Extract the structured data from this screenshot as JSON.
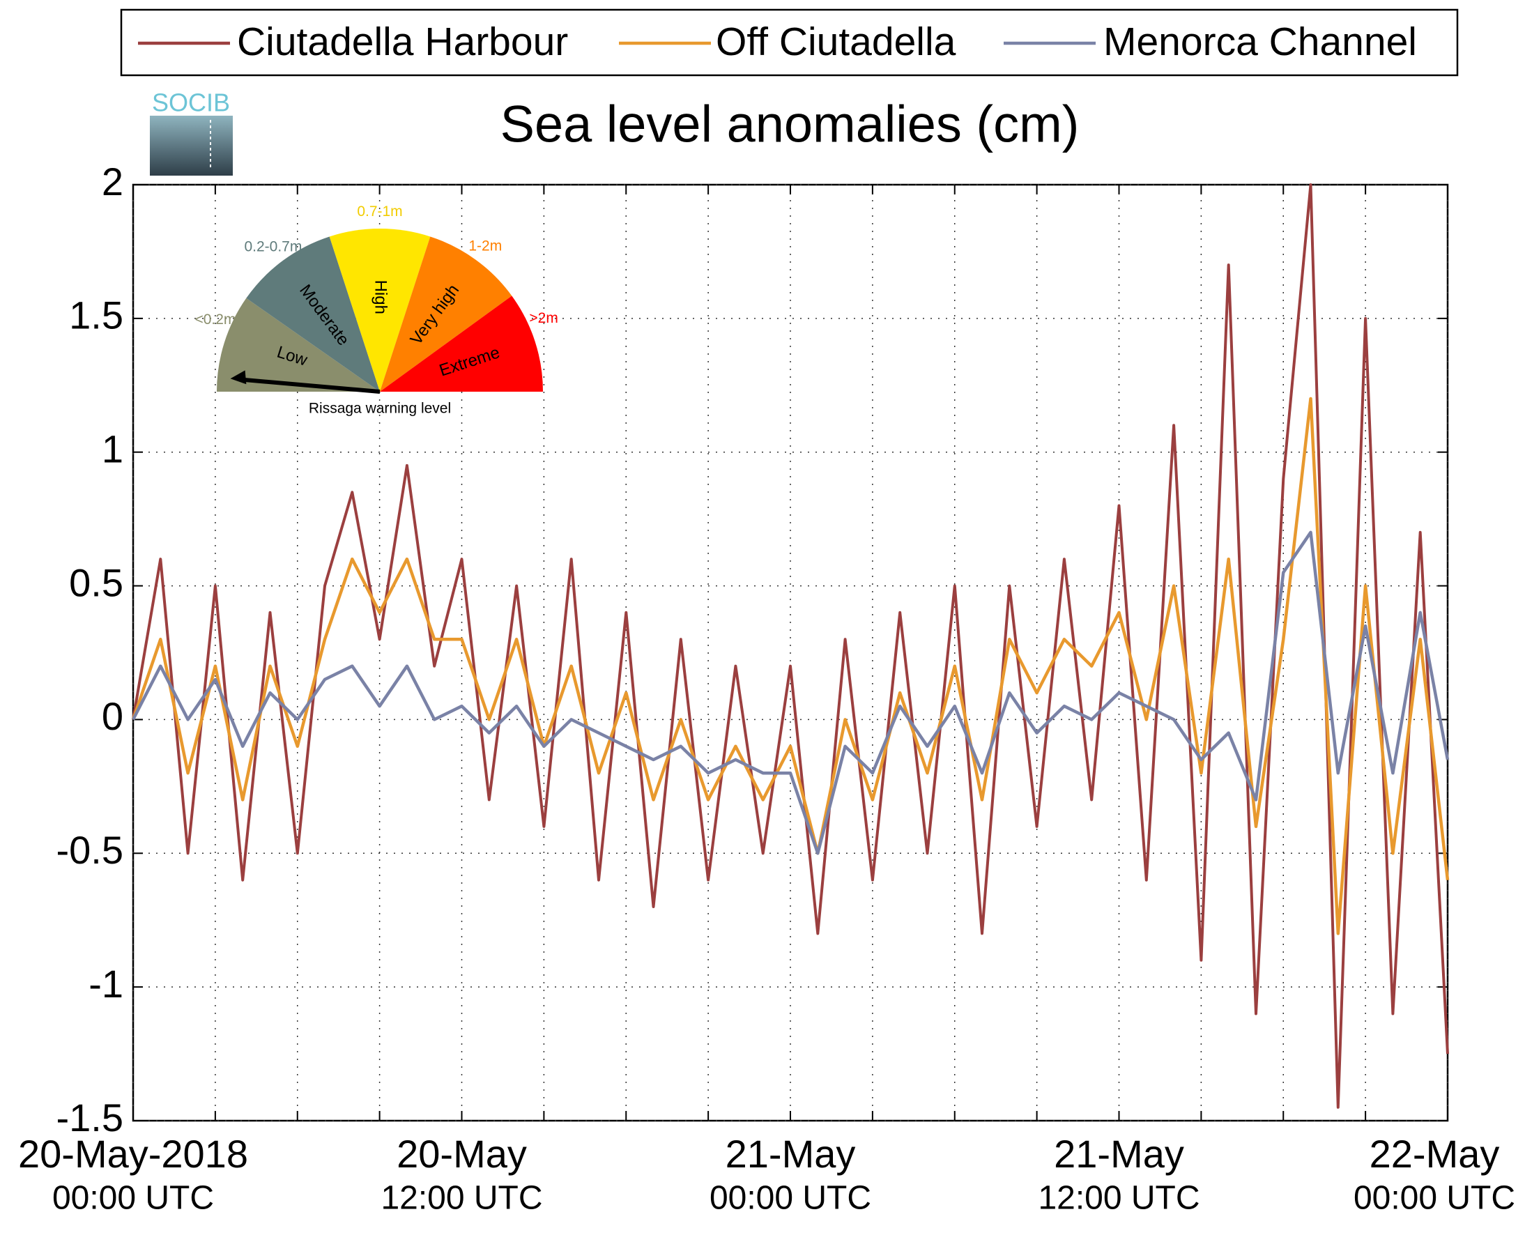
{
  "chart_data": {
    "type": "line",
    "title": "Sea level anomalies (cm)",
    "x": [
      "2018-05-20T00:00Z",
      "2018-05-20T01:00Z",
      "2018-05-20T02:00Z",
      "2018-05-20T03:00Z",
      "2018-05-20T04:00Z",
      "2018-05-20T05:00Z",
      "2018-05-20T06:00Z",
      "2018-05-20T07:00Z",
      "2018-05-20T08:00Z",
      "2018-05-20T09:00Z",
      "2018-05-20T10:00Z",
      "2018-05-20T11:00Z",
      "2018-05-20T12:00Z",
      "2018-05-20T13:00Z",
      "2018-05-20T14:00Z",
      "2018-05-20T15:00Z",
      "2018-05-20T16:00Z",
      "2018-05-20T17:00Z",
      "2018-05-20T18:00Z",
      "2018-05-20T19:00Z",
      "2018-05-20T20:00Z",
      "2018-05-20T21:00Z",
      "2018-05-20T22:00Z",
      "2018-05-20T23:00Z",
      "2018-05-21T00:00Z",
      "2018-05-21T01:00Z",
      "2018-05-21T02:00Z",
      "2018-05-21T03:00Z",
      "2018-05-21T04:00Z",
      "2018-05-21T05:00Z",
      "2018-05-21T06:00Z",
      "2018-05-21T07:00Z",
      "2018-05-21T08:00Z",
      "2018-05-21T09:00Z",
      "2018-05-21T10:00Z",
      "2018-05-21T11:00Z",
      "2018-05-21T12:00Z",
      "2018-05-21T13:00Z",
      "2018-05-21T14:00Z",
      "2018-05-21T15:00Z",
      "2018-05-21T16:00Z",
      "2018-05-21T17:00Z",
      "2018-05-21T18:00Z",
      "2018-05-21T19:00Z",
      "2018-05-21T20:00Z",
      "2018-05-21T21:00Z",
      "2018-05-21T22:00Z",
      "2018-05-21T23:00Z",
      "2018-05-22T00:00Z"
    ],
    "series": [
      {
        "name": "Ciutadella Harbour",
        "color": "#9b3f3f",
        "values": [
          0,
          0.6,
          -0.5,
          0.5,
          -0.6,
          0.4,
          -0.5,
          0.5,
          0.85,
          0.3,
          0.95,
          0.2,
          0.6,
          -0.3,
          0.5,
          -0.4,
          0.6,
          -0.6,
          0.4,
          -0.7,
          0.3,
          -0.6,
          0.2,
          -0.5,
          0.2,
          -0.8,
          0.3,
          -0.6,
          0.4,
          -0.5,
          0.5,
          -0.8,
          0.5,
          -0.4,
          0.6,
          -0.3,
          0.8,
          -0.6,
          1.1,
          -0.9,
          1.7,
          -1.1,
          0.9,
          2.0,
          -1.45,
          1.5,
          -1.1,
          0.7,
          -1.25
        ]
      },
      {
        "name": "Off Ciutadella",
        "color": "#e8992e",
        "values": [
          0,
          0.3,
          -0.2,
          0.2,
          -0.3,
          0.2,
          -0.1,
          0.3,
          0.6,
          0.4,
          0.6,
          0.3,
          0.3,
          0,
          0.3,
          -0.1,
          0.2,
          -0.2,
          0.1,
          -0.3,
          0,
          -0.3,
          -0.1,
          -0.3,
          -0.1,
          -0.5,
          0,
          -0.3,
          0.1,
          -0.2,
          0.2,
          -0.3,
          0.3,
          0.1,
          0.3,
          0.2,
          0.4,
          0,
          0.5,
          -0.2,
          0.6,
          -0.4,
          0.3,
          1.2,
          -0.8,
          0.5,
          -0.5,
          0.3,
          -0.6
        ]
      },
      {
        "name": "Menorca Channel",
        "color": "#7a82a6",
        "values": [
          0,
          0.2,
          0,
          0.15,
          -0.1,
          0.1,
          0,
          0.15,
          0.2,
          0.05,
          0.2,
          0,
          0.05,
          -0.05,
          0.05,
          -0.1,
          0,
          -0.05,
          -0.1,
          -0.15,
          -0.1,
          -0.2,
          -0.15,
          -0.2,
          -0.2,
          -0.5,
          -0.1,
          -0.2,
          0.05,
          -0.1,
          0.05,
          -0.2,
          0.1,
          -0.05,
          0.05,
          0,
          0.1,
          0.05,
          0,
          -0.15,
          -0.05,
          -0.3,
          0.55,
          0.7,
          -0.2,
          0.35,
          -0.2,
          0.4,
          -0.15
        ]
      }
    ],
    "xlim": [
      "2018-05-20T00:00Z",
      "2018-05-22T00:00Z"
    ],
    "xticks": [
      {
        "value": "2018-05-20T00:00Z",
        "label": [
          "20-May-2018",
          "00:00 UTC"
        ]
      },
      {
        "value": "2018-05-20T03:00Z",
        "label": null
      },
      {
        "value": "2018-05-20T06:00Z",
        "label": null
      },
      {
        "value": "2018-05-20T09:00Z",
        "label": null
      },
      {
        "value": "2018-05-20T12:00Z",
        "label": [
          "20-May",
          "12:00 UTC"
        ]
      },
      {
        "value": "2018-05-20T15:00Z",
        "label": null
      },
      {
        "value": "2018-05-20T18:00Z",
        "label": null
      },
      {
        "value": "2018-05-20T21:00Z",
        "label": null
      },
      {
        "value": "2018-05-21T00:00Z",
        "label": [
          "21-May",
          "00:00 UTC"
        ]
      },
      {
        "value": "2018-05-21T03:00Z",
        "label": null
      },
      {
        "value": "2018-05-21T06:00Z",
        "label": null
      },
      {
        "value": "2018-05-21T09:00Z",
        "label": null
      },
      {
        "value": "2018-05-21T12:00Z",
        "label": [
          "21-May",
          "12:00 UTC"
        ]
      },
      {
        "value": "2018-05-21T15:00Z",
        "label": null
      },
      {
        "value": "2018-05-21T18:00Z",
        "label": null
      },
      {
        "value": "2018-05-21T21:00Z",
        "label": null
      },
      {
        "value": "2018-05-22T00:00Z",
        "label": [
          "22-May",
          "00:00 UTC"
        ]
      }
    ],
    "ylim": [
      -1.5,
      2
    ],
    "yticks": [
      -1.5,
      -1,
      -0.5,
      0,
      0.5,
      1,
      1.5,
      2
    ],
    "grid": true,
    "legend": "top"
  },
  "inset": {
    "title": "Rissaga warning level",
    "levels": [
      {
        "name": "Low",
        "range": "<0.2m",
        "color": "#8a8e6c"
      },
      {
        "name": "Moderate",
        "range": "0.2-0.7m",
        "color": "#5f7b7b"
      },
      {
        "name": "High",
        "range": "0.7-1m",
        "color": "#ffe600"
      },
      {
        "name": "Very high",
        "range": "1-2m",
        "color": "#ff8000"
      },
      {
        "name": "Extreme",
        "range": ">2m",
        "color": "#ff0000"
      }
    ]
  },
  "logo": {
    "text": "SOCIB"
  }
}
